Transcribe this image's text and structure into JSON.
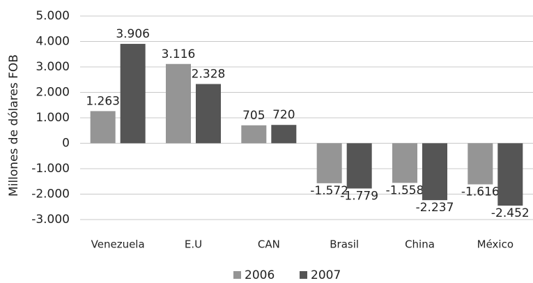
{
  "chart_data": {
    "type": "bar",
    "y_label": "Millones de dólares FOB",
    "categories": [
      "Venezuela",
      "E.U",
      "CAN",
      "Brasil",
      "China",
      "México"
    ],
    "series": [
      {
        "name": "2006",
        "color": "#959595",
        "values": [
          1263,
          3116,
          705,
          -1572,
          -1558,
          -1616
        ],
        "value_labels": [
          "1.263",
          "3.116",
          "705",
          "-1.572",
          "-1.558",
          "-1.616"
        ]
      },
      {
        "name": "2007",
        "color": "#555555",
        "values": [
          3906,
          2328,
          720,
          -1779,
          -2237,
          -2452
        ],
        "value_labels": [
          "3.906",
          "2.328",
          "720",
          "-1.779",
          "-2.237",
          "-2.452"
        ]
      }
    ],
    "ylim": [
      -3000,
      5000
    ],
    "yticks": [
      {
        "value": -3000,
        "label": "-3.000"
      },
      {
        "value": -2000,
        "label": "-2.000"
      },
      {
        "value": -1000,
        "label": "-1.000"
      },
      0,
      {
        "value": 1000,
        "label": "1.000"
      },
      {
        "value": 2000,
        "label": "2.000"
      },
      {
        "value": 3000,
        "label": "3.000"
      },
      {
        "value": 4000,
        "label": "4.000"
      },
      {
        "value": 5000,
        "label": "5.000"
      }
    ],
    "grid": true,
    "legend": "bottom"
  }
}
